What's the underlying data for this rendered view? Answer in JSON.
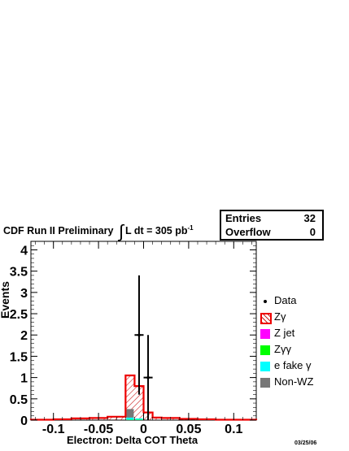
{
  "header": {
    "experiment": "CDF Run II Preliminary",
    "integral_symbol": "∫",
    "lumi_text": "L dt = 305 pb",
    "lumi_exponent": "-1"
  },
  "stats": {
    "entries_label": "Entries",
    "entries_value": "32",
    "overflow_label": "Overflow",
    "overflow_value": "0"
  },
  "footer_date": "03/25/06",
  "colors": {
    "zgamma_line": "#ee0000",
    "zgamma_hatch": "#cc2222",
    "zjet": "#ff00ff",
    "zgg": "#00ff00",
    "efake": "#00ffff",
    "nonwz": "#777777",
    "data": "#000000"
  },
  "chart_data": {
    "type": "bar",
    "xlabel": "Electron: Delta COT Theta",
    "ylabel": "Events",
    "xlim": [
      -0.125,
      0.125
    ],
    "ylim": [
      0,
      4.2
    ],
    "xticks": [
      {
        "value": -0.1,
        "label": "-0.1"
      },
      {
        "value": -0.05,
        "label": "-0.05"
      },
      {
        "value": 0,
        "label": "0"
      },
      {
        "value": 0.05,
        "label": "0.05"
      },
      {
        "value": 0.1,
        "label": "0.1"
      }
    ],
    "yticks": [
      {
        "value": 0,
        "label": "0"
      },
      {
        "value": 0.5,
        "label": "0.5"
      },
      {
        "value": 1,
        "label": "1"
      },
      {
        "value": 1.5,
        "label": "1.5"
      },
      {
        "value": 2,
        "label": "2"
      },
      {
        "value": 2.5,
        "label": "2.5"
      },
      {
        "value": 3,
        "label": "3"
      },
      {
        "value": 3.5,
        "label": "3.5"
      },
      {
        "value": 4,
        "label": "4"
      }
    ],
    "grid": false,
    "legend_position": "right",
    "bin_edges": [
      -0.125,
      -0.1,
      -0.08,
      -0.06,
      -0.04,
      -0.02,
      -0.01,
      0,
      0.01,
      0.02,
      0.04,
      0.06,
      0.08,
      0.1,
      0.125
    ],
    "series": [
      {
        "name": "Zγ",
        "style": "hatched-outline",
        "color_key": "zgamma_line",
        "values": [
          0.01,
          0.02,
          0.04,
          0.05,
          0.08,
          1.05,
          0.8,
          0.18,
          0.06,
          0.05,
          0.03,
          0.02,
          0.01,
          0.01
        ]
      },
      {
        "name": "Z jet",
        "style": "fill",
        "color_key": "zjet",
        "values": [
          0,
          0,
          0,
          0,
          0,
          0,
          0,
          0,
          0,
          0,
          0,
          0,
          0,
          0
        ]
      },
      {
        "name": "Zγγ",
        "style": "fill",
        "color_key": "zgg",
        "values": [
          0,
          0,
          0,
          0,
          0,
          0.01,
          0.01,
          0,
          0,
          0,
          0,
          0,
          0,
          0
        ]
      },
      {
        "name": "e fake γ",
        "style": "fill",
        "color_key": "efake",
        "values": [
          0,
          0,
          0,
          0,
          0,
          0.05,
          0.03,
          0,
          0,
          0,
          0,
          0,
          0,
          0
        ]
      },
      {
        "name": "Non-WZ",
        "style": "fill",
        "color_key": "nonwz",
        "values": [
          0,
          0,
          0,
          0,
          0,
          0.2,
          0,
          0,
          0,
          0,
          0,
          0,
          0,
          0
        ]
      }
    ],
    "data_points": [
      {
        "x": -0.005,
        "y": 2,
        "err_low": 1.4,
        "err_high": 1.4
      },
      {
        "x": 0.005,
        "y": 1,
        "err_low": 1.0,
        "err_high": 1.0
      }
    ],
    "legend": [
      {
        "label": "Data",
        "kind": "marker",
        "color_key": "data"
      },
      {
        "label": "Zγ",
        "kind": "hatch",
        "color_key": "zgamma_line"
      },
      {
        "label": "Z jet",
        "kind": "fill",
        "color_key": "zjet"
      },
      {
        "label": "Zγγ",
        "kind": "fill",
        "color_key": "zgg"
      },
      {
        "label": "e fake γ",
        "kind": "fill",
        "color_key": "efake"
      },
      {
        "label": "Non-WZ",
        "kind": "fill",
        "color_key": "nonwz"
      }
    ]
  }
}
